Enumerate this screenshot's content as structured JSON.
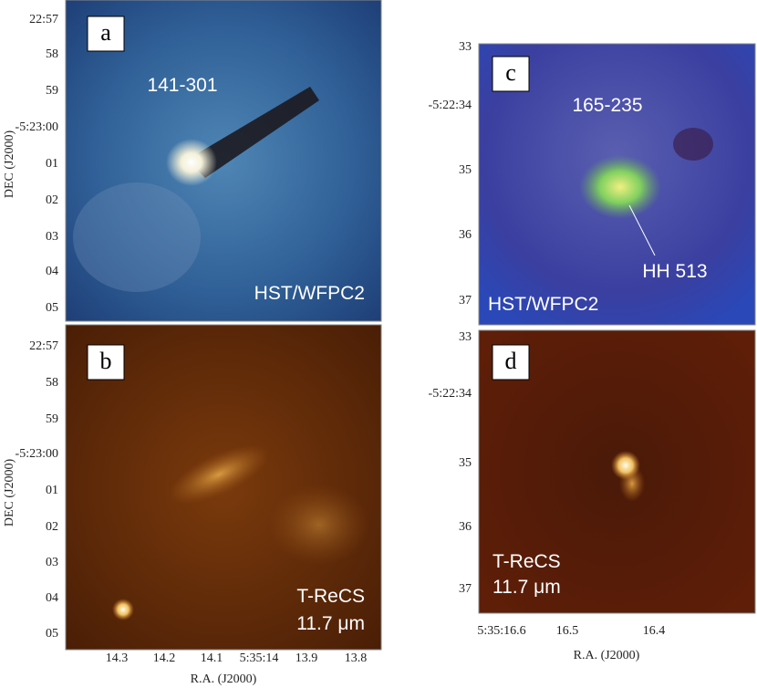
{
  "panels": [
    {
      "label": "a",
      "annotations": [
        "141-301",
        "HST/WFPC2"
      ],
      "y_ticks": [
        "22:57",
        "58",
        "59",
        "-5:23:00",
        "01",
        "02",
        "03",
        "04",
        "05"
      ],
      "y_axis_label": "DEC (J2000)"
    },
    {
      "label": "b",
      "annotations": [
        "T-ReCS",
        "11.7 μm"
      ],
      "y_ticks": [
        "22:57",
        "58",
        "59",
        "-5:23:00",
        "01",
        "02",
        "03",
        "04",
        "05"
      ],
      "y_axis_label": "DEC (J2000)",
      "x_ticks": [
        "14.3",
        "14.2",
        "14.1",
        "5:35:14",
        "13.9",
        "13.8"
      ],
      "x_axis_label": "R.A. (J2000)"
    },
    {
      "label": "c",
      "annotations": [
        "165-235",
        "HH 513",
        "HST/WFPC2"
      ],
      "y_ticks": [
        "33",
        "-5:22:34",
        "35",
        "36",
        "37"
      ]
    },
    {
      "label": "d",
      "annotations": [
        "T-ReCS",
        "11.7 μm"
      ],
      "y_ticks": [
        "33",
        "-5:22:34",
        "35",
        "36",
        "37"
      ],
      "x_ticks": [
        "5:35:16.6",
        "16.5",
        "16.4"
      ],
      "x_axis_label": "R.A. (J2000)"
    }
  ]
}
